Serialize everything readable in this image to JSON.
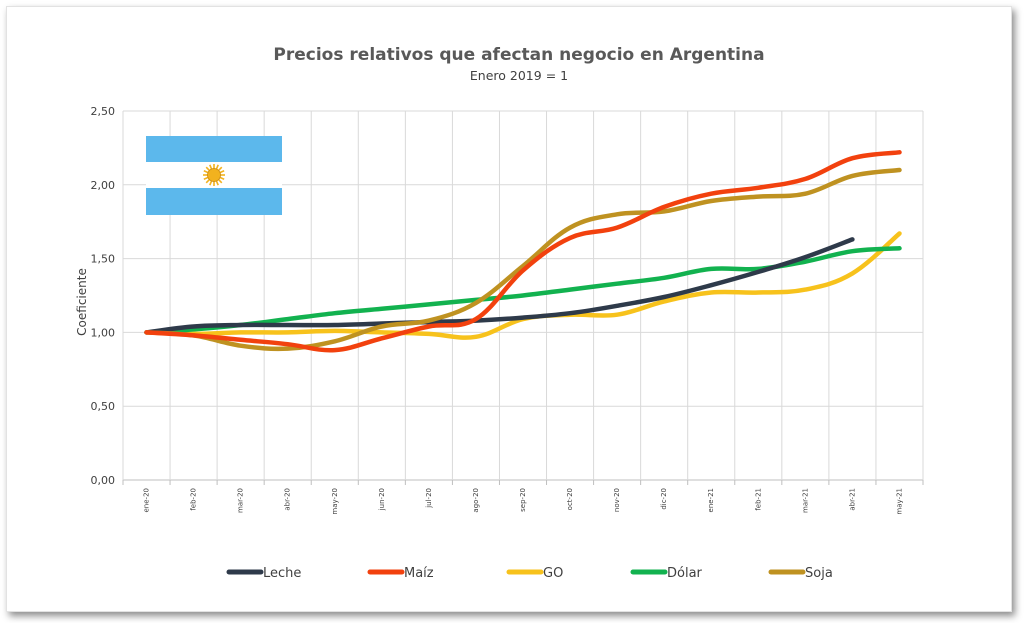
{
  "colors": {
    "leche": "#2e3a4a",
    "maiz": "#f2410e",
    "go": "#f7c21c",
    "dolar": "#12b24f",
    "soja": "#bf9221",
    "flag_blue": "#5cb8ec",
    "flag_sun": "#f2b21e"
  },
  "flag": {
    "icon": "argentina-flag-icon"
  },
  "chart_data": {
    "type": "line",
    "title": "Precios relativos que afectan negocio en Argentina",
    "subtitle": "Enero 2019 = 1",
    "ylabel": "Coeficiente",
    "xlabel": "",
    "ylim": [
      0,
      2.5
    ],
    "yticks": [
      "0,00",
      "0,50",
      "1,00",
      "1,50",
      "2,00",
      "2,50"
    ],
    "grid": true,
    "legend_position": "bottom",
    "categories": [
      "ene-20",
      "feb-20",
      "mar-20",
      "abr-20",
      "may-20",
      "jun-20",
      "jul-20",
      "ago-20",
      "sep-20",
      "oct-20",
      "nov-20",
      "dic-20",
      "ene-21",
      "feb-21",
      "mar-21",
      "abr-21",
      "may-21"
    ],
    "series": [
      {
        "name": "Leche",
        "color_key": "leche",
        "values": [
          1.0,
          1.04,
          1.05,
          1.05,
          1.05,
          1.06,
          1.07,
          1.08,
          1.1,
          1.13,
          1.18,
          1.24,
          1.32,
          1.41,
          1.51,
          1.63,
          null
        ]
      },
      {
        "name": "Maíz",
        "color_key": "maiz",
        "values": [
          1.0,
          0.98,
          0.95,
          0.92,
          0.88,
          0.96,
          1.04,
          1.09,
          1.42,
          1.64,
          1.71,
          1.85,
          1.94,
          1.98,
          2.04,
          2.18,
          2.22
        ]
      },
      {
        "name": "GO",
        "color_key": "go",
        "values": [
          1.0,
          0.99,
          1.0,
          1.0,
          1.01,
          1.0,
          0.99,
          0.97,
          1.09,
          1.12,
          1.12,
          1.21,
          1.27,
          1.27,
          1.29,
          1.4,
          1.67
        ]
      },
      {
        "name": "Dólar",
        "color_key": "dolar",
        "values": [
          1.0,
          1.02,
          1.05,
          1.09,
          1.13,
          1.16,
          1.19,
          1.22,
          1.25,
          1.29,
          1.33,
          1.37,
          1.43,
          1.43,
          1.48,
          1.55,
          1.57
        ]
      },
      {
        "name": "Soja",
        "color_key": "soja",
        "values": [
          1.0,
          0.98,
          0.91,
          0.89,
          0.94,
          1.04,
          1.08,
          1.2,
          1.45,
          1.71,
          1.8,
          1.82,
          1.89,
          1.92,
          1.94,
          2.06,
          2.1
        ]
      }
    ]
  }
}
